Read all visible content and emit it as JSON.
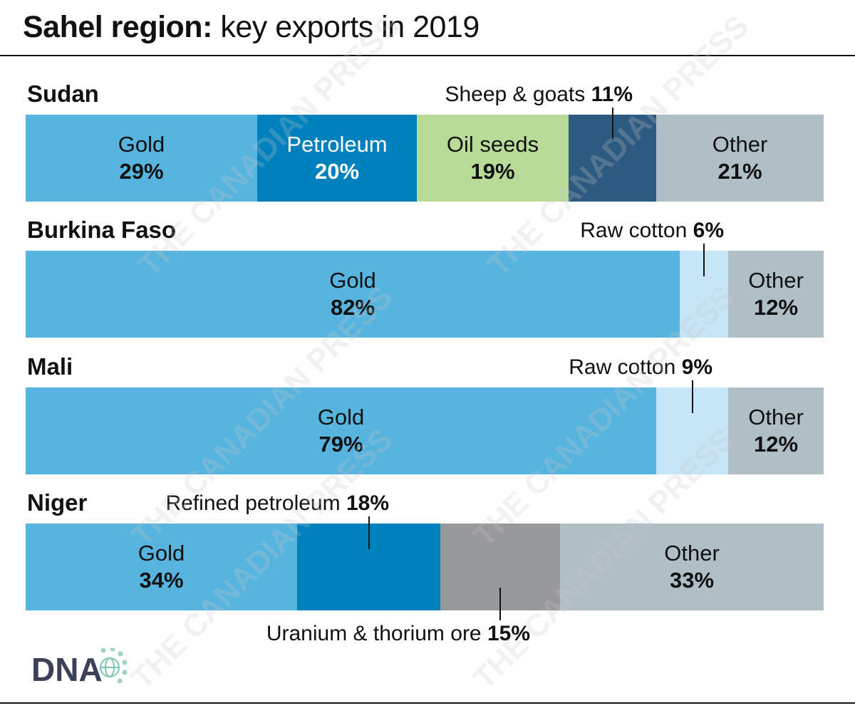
{
  "header": {
    "title_bold": "Sahel region:",
    "title_rest": " key exports in 2019"
  },
  "watermark": "THE CANADIAN PRESS",
  "logo": "DNA",
  "colors": {
    "gold": "#56b4df",
    "petroleum": "#0080bd",
    "oil_seeds": "#b8dc98",
    "sheep_goats": "#2d5a80",
    "other": "#b0bec6",
    "raw_cotton": "#c6e5f6",
    "uranium": "#98999b"
  },
  "chart_data": {
    "type": "bar",
    "orientation": "horizontal",
    "stacked": true,
    "unit": "%",
    "title": "Sahel region: key exports in 2019",
    "countries": [
      {
        "name": "Sudan",
        "segments": [
          {
            "label": "Gold",
            "value": 29,
            "pct": "29%",
            "color": "#56b4df",
            "label_position": "inside"
          },
          {
            "label": "Petroleum",
            "value": 20,
            "pct": "20%",
            "color": "#0080bd",
            "label_position": "inside",
            "text_color": "#ffffff"
          },
          {
            "label": "Oil seeds",
            "value": 19,
            "pct": "19%",
            "color": "#b8dc98",
            "label_position": "inside"
          },
          {
            "label": "Sheep & goats",
            "value": 11,
            "pct": "11%",
            "color": "#2d5a80",
            "label_position": "above"
          },
          {
            "label": "Other",
            "value": 21,
            "pct": "21%",
            "color": "#b0bec6",
            "label_position": "inside"
          }
        ]
      },
      {
        "name": "Burkina Faso",
        "segments": [
          {
            "label": "Gold",
            "value": 82,
            "pct": "82%",
            "color": "#56b4df",
            "label_position": "inside"
          },
          {
            "label": "Raw cotton",
            "value": 6,
            "pct": "6%",
            "color": "#c6e5f6",
            "label_position": "above"
          },
          {
            "label": "Other",
            "value": 12,
            "pct": "12%",
            "color": "#b0bec6",
            "label_position": "inside"
          }
        ]
      },
      {
        "name": "Mali",
        "segments": [
          {
            "label": "Gold",
            "value": 79,
            "pct": "79%",
            "color": "#56b4df",
            "label_position": "inside"
          },
          {
            "label": "Raw cotton",
            "value": 9,
            "pct": "9%",
            "color": "#c6e5f6",
            "label_position": "above"
          },
          {
            "label": "Other",
            "value": 12,
            "pct": "12%",
            "color": "#b0bec6",
            "label_position": "inside"
          }
        ]
      },
      {
        "name": "Niger",
        "segments": [
          {
            "label": "Gold",
            "value": 34,
            "pct": "34%",
            "color": "#56b4df",
            "label_position": "inside"
          },
          {
            "label": "Refined petroleum",
            "value": 18,
            "pct": "18%",
            "color": "#0080bd",
            "label_position": "above"
          },
          {
            "label": "Uranium & thorium ore",
            "value": 15,
            "pct": "15%",
            "color": "#98999b",
            "label_position": "below"
          },
          {
            "label": "Other",
            "value": 33,
            "pct": "33%",
            "color": "#b0bec6",
            "label_position": "inside"
          }
        ]
      }
    ]
  }
}
